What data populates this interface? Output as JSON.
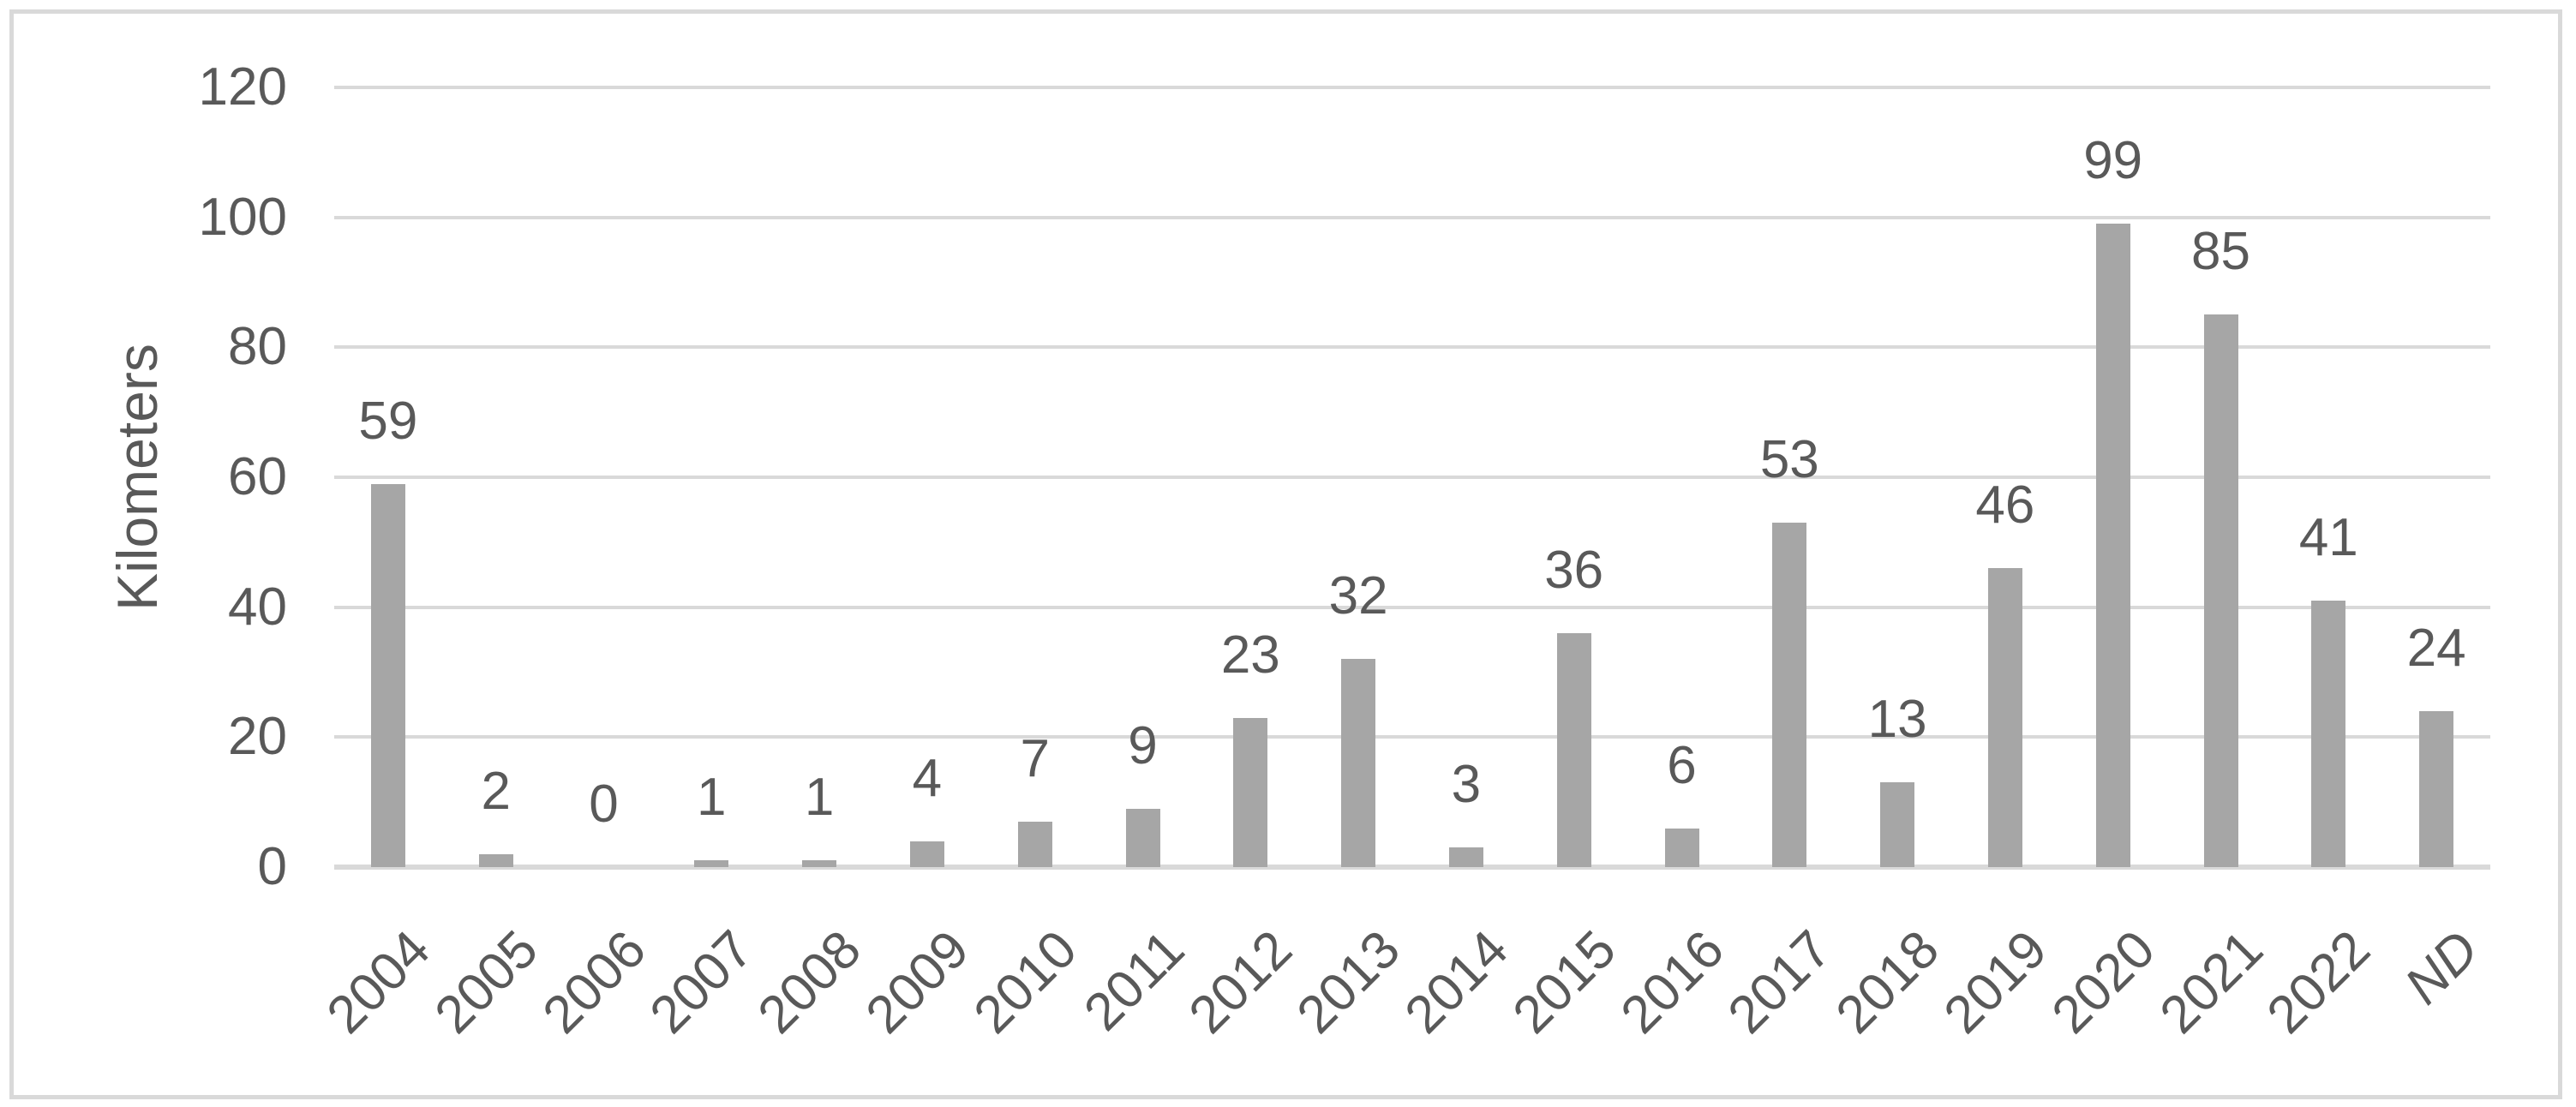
{
  "chart_data": {
    "type": "bar",
    "title": "",
    "ylabel": "Kilometers",
    "xlabel": "",
    "categories": [
      "2004",
      "2005",
      "2006",
      "2007",
      "2008",
      "2009",
      "2010",
      "2011",
      "2012",
      "2013",
      "2014",
      "2015",
      "2016",
      "2017",
      "2018",
      "2019",
      "2020",
      "2021",
      "2022",
      "ND"
    ],
    "values": [
      59,
      2,
      0,
      1,
      1,
      4,
      7,
      9,
      23,
      32,
      3,
      36,
      6,
      53,
      13,
      46,
      99,
      85,
      41,
      24
    ],
    "data_labels_shown": true,
    "ylim": [
      0,
      120
    ],
    "yticks": [
      0,
      20,
      40,
      60,
      80,
      100,
      120
    ],
    "grid": "horizontal",
    "legend_position": "none",
    "x_tick_rotation_deg": 45,
    "italic_categories": [
      "ND"
    ],
    "colors": {
      "bar": "#a6a6a6",
      "gridline": "#d9d9d9",
      "axis_line": "#d9d9d9",
      "text": "#595959",
      "frame_border": "#d9d9d9",
      "background": "#ffffff"
    }
  }
}
